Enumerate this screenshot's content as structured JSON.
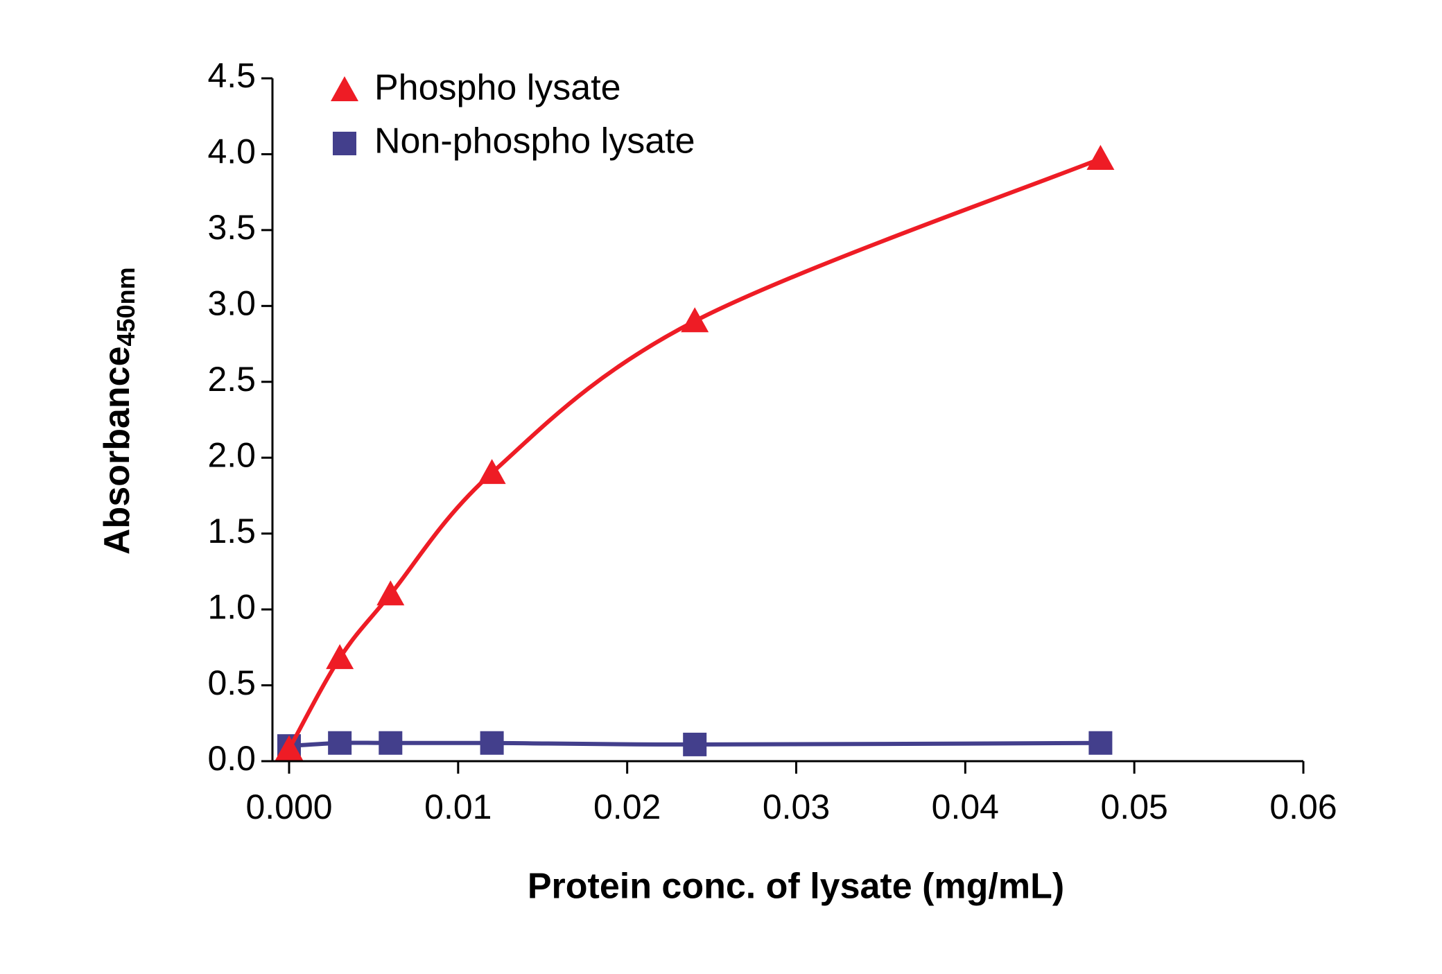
{
  "chart_data": {
    "type": "line",
    "x_label": "Protein conc. of lysate (mg/mL)",
    "y_label": "Absorbance",
    "y_label_subscript": "450nm",
    "x": [
      0,
      0.003,
      0.006,
      0.012,
      0.024,
      0.048
    ],
    "series": [
      {
        "name": "Phospho lysate",
        "color": "#ee1c25",
        "marker": "triangle",
        "values": [
          0.08,
          0.68,
          1.1,
          1.9,
          2.9,
          3.97
        ]
      },
      {
        "name": "Non-phospho lysate",
        "color": "#433f8c",
        "marker": "square",
        "values": [
          0.1,
          0.12,
          0.12,
          0.12,
          0.11,
          0.12
        ]
      }
    ],
    "xlim": [
      0,
      0.06
    ],
    "xticks": [
      {
        "value": 0,
        "label": "0.000"
      },
      0.01,
      0.02,
      0.03,
      0.04,
      0.05,
      0.06
    ],
    "ylim": [
      0,
      4.5
    ],
    "yticks": [
      {
        "value": 0,
        "label": "0.0"
      },
      0.5,
      {
        "value": 1,
        "label": "1.0"
      },
      1.5,
      {
        "value": 2,
        "label": "2.0"
      },
      2.5,
      {
        "value": 3,
        "label": "3.0"
      },
      3.5,
      {
        "value": 4,
        "label": "4.0"
      },
      4.5
    ],
    "legend": "upper left"
  }
}
